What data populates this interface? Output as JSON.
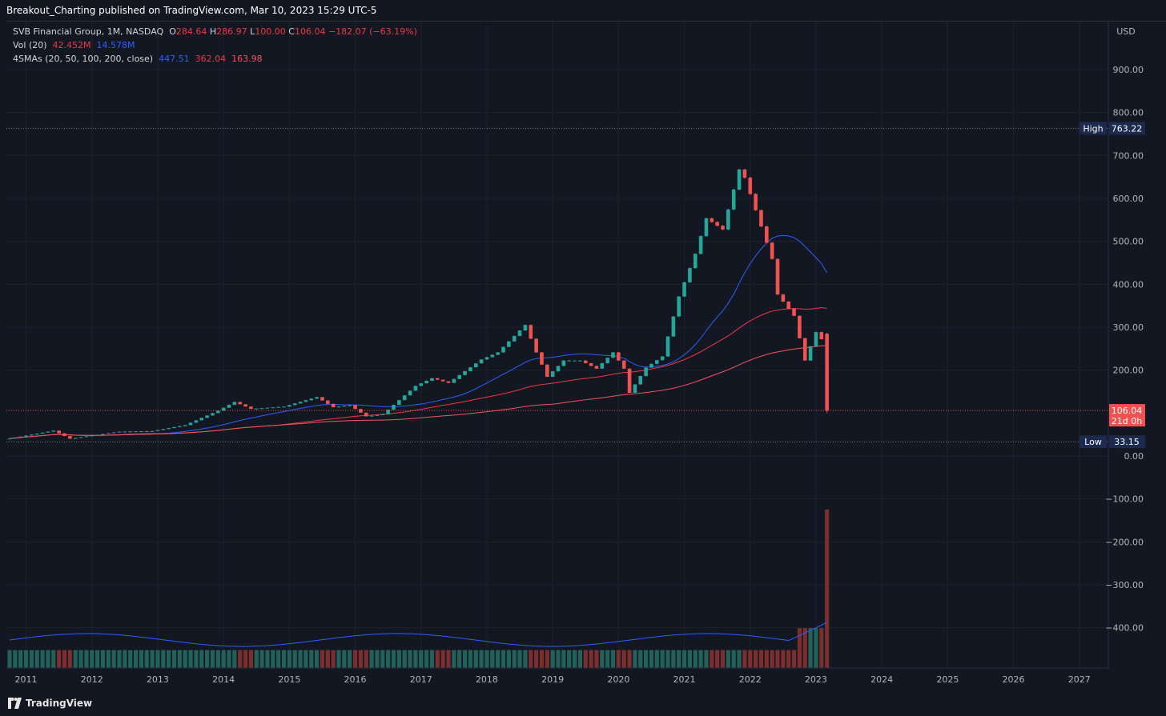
{
  "header": {
    "publish_line": "Breakout_Charting published on TradingView.com, Mar 10, 2023 15:29 UTC-5"
  },
  "legend": {
    "symbol": "SVB Financial Group, 1M, NASDAQ",
    "o_label": "O",
    "o_value": "284.64",
    "h_label": "H",
    "h_value": "286.97",
    "l_label": "L",
    "l_value": "100.00",
    "c_label": "C",
    "c_value": "106.04",
    "change": "−182.07 (−63.19%)",
    "vol_label": "Vol (20)",
    "vol_value": "42.452M",
    "vol_ma_value": "14.578M",
    "sma_label": "4SMAs (20, 50, 100, 200, close)",
    "sma20": "447.51",
    "sma50": "362.04",
    "sma100": "163.98"
  },
  "price_axis": {
    "currency": "USD",
    "high_tag": "High",
    "high_value": "763.22",
    "low_tag": "Low",
    "low_value": "33.15",
    "last_value": "106.04",
    "countdown": "21d 0h"
  },
  "footer": {
    "brand": "TradingView"
  },
  "colors": {
    "bg": "#131722",
    "grid": "#1e222d",
    "up": "#26a69a",
    "down": "#ef5350",
    "vol_up": "#21615a",
    "vol_down": "#7a2e2e",
    "sma20": "#2962ff",
    "sma50": "#f23645",
    "sma200": "#f7525f",
    "tag_bg": "#1b2a4e"
  },
  "chart_data": {
    "type": "candlestick",
    "title": "SVB Financial Group, 1M, NASDAQ",
    "ylim": [
      -450,
      980
    ],
    "y_ticks": [
      900,
      800,
      700,
      600,
      500,
      400,
      300,
      200,
      0,
      -100,
      -200,
      -300,
      -400
    ],
    "y_tick_labels": [
      "900.00",
      "800.00",
      "700.00",
      "600.00",
      "500.00",
      "400.00",
      "300.00",
      "200.00",
      "0.00",
      "−100.00",
      "−200.00",
      "−300.00",
      "−400.00"
    ],
    "x_tick_labels": [
      "2011",
      "2012",
      "2013",
      "2014",
      "2015",
      "2016",
      "2017",
      "2018",
      "2019",
      "2020",
      "2021",
      "2022",
      "2023",
      "2024",
      "2025",
      "2026",
      "2027"
    ],
    "start": "2010-10",
    "price_anchors": [
      [
        "2010-10",
        42,
        44
      ],
      [
        "2011-06",
        60,
        65
      ],
      [
        "2011-09",
        40,
        45
      ],
      [
        "2012-06",
        55,
        65
      ],
      [
        "2012-12",
        58,
        65
      ],
      [
        "2013-06",
        72,
        80
      ],
      [
        "2013-12",
        105,
        118
      ],
      [
        "2014-03",
        128,
        138
      ],
      [
        "2014-06",
        112,
        120
      ],
      [
        "2014-12",
        118,
        125
      ],
      [
        "2015-06",
        140,
        150
      ],
      [
        "2015-09",
        115,
        125
      ],
      [
        "2015-12",
        120,
        130
      ],
      [
        "2016-03",
        95,
        100
      ],
      [
        "2016-06",
        95,
        110
      ],
      [
        "2016-12",
        170,
        175
      ],
      [
        "2017-03",
        188,
        195
      ],
      [
        "2017-06",
        175,
        185
      ],
      [
        "2017-12",
        235,
        240
      ],
      [
        "2018-03",
        250,
        260
      ],
      [
        "2018-08",
        320,
        325
      ],
      [
        "2018-10",
        240,
        270
      ],
      [
        "2018-12",
        190,
        200
      ],
      [
        "2019-03",
        230,
        240
      ],
      [
        "2019-06",
        230,
        240
      ],
      [
        "2019-09",
        210,
        220
      ],
      [
        "2019-12",
        250,
        260
      ],
      [
        "2020-02",
        210,
        220
      ],
      [
        "2020-03",
        151,
        160
      ],
      [
        "2020-06",
        215,
        220
      ],
      [
        "2020-09",
        240,
        250
      ],
      [
        "2020-12",
        385,
        400
      ],
      [
        "2021-03",
        490,
        505
      ],
      [
        "2021-05",
        580,
        590
      ],
      [
        "2021-08",
        555,
        560
      ],
      [
        "2021-11",
        700,
        710
      ],
      [
        "2021-12",
        680,
        690
      ],
      [
        "2022-03",
        560,
        570
      ],
      [
        "2022-05",
        480,
        490
      ],
      [
        "2022-06",
        395,
        400
      ],
      [
        "2022-09",
        340,
        350
      ],
      [
        "2022-11",
        230,
        240
      ],
      [
        "2023-01",
        300,
        310
      ],
      [
        "2023-02",
        285,
        290
      ],
      [
        "2023-03",
        106,
        106
      ]
    ],
    "last_candle": {
      "open": 284.64,
      "high": 286.97,
      "low": 100.0,
      "close": 106.04
    },
    "all_time_high": 763.22,
    "all_time_low": 33.15,
    "sma_series": [
      {
        "name": "SMA 20",
        "last": 447.51
      },
      {
        "name": "SMA 50",
        "last": 362.04
      },
      {
        "name": "SMA 100",
        "last": 163.98
      }
    ],
    "volume": {
      "last": "42.452M",
      "ma20": "14.578M"
    }
  }
}
